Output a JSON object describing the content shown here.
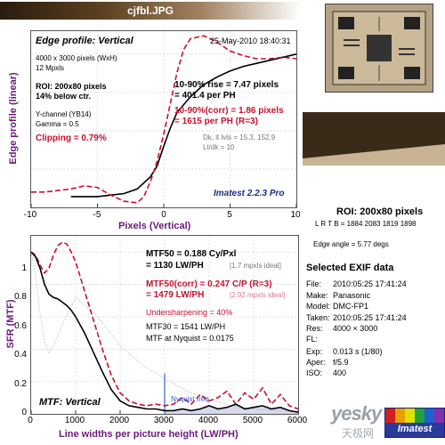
{
  "header": {
    "filename": "cjfbl.JPG",
    "gradient_colors": [
      "#2a1c0e",
      "#5a4020",
      "#a08060",
      "#ffffff"
    ]
  },
  "thumbnail": {
    "icon": "test-chart-thumbnail-icon"
  },
  "roi_crop": {
    "dark_color": "#3a2a18",
    "light_color": "#c8b494"
  },
  "edge_panel": {
    "title": "Edge profile: Vertical",
    "date": "25-May-2010 18:40:31",
    "info_lines": [
      "4000 x 3000 pixels (WxH)",
      "12 Mpxls"
    ],
    "roi_line1": "ROI: 200x80 pixels",
    "roi_line2": "14% below ctr.",
    "channel": "Y-channel (YB14)",
    "gamma": "Gamma = 0.5",
    "clipping": "Clipping = 0.79%",
    "rise_line1": "10-90% rise = 7.47 pixels",
    "rise_line2": "= 401.4 per PH",
    "corr_line1": "10-90%(corr) = 1.86 pixels",
    "corr_line2": "= 1615 per PH  (R=3)",
    "levels_line1": "Dk, lt lvls = 15.3, 152.9",
    "levels_line2": "Lt/dk = 10",
    "brand": "Imatest 2.2.3 Pro",
    "ylabel": "Edge profile (linear)",
    "xlabel": "Pixels (Vertical)",
    "xticks": [
      "-10",
      "-5",
      "0",
      "5",
      "10"
    ]
  },
  "mtf_panel": {
    "mtf50_line1": "MTF50 = 0.188 Cy/Pxl",
    "mtf50_line2": "= 1130 LW/PH",
    "mtf50_ideal": "[1.7 mpxls ideal]",
    "corr_line1": "MTF50(corr) = 0.247 C/P  (R=3)",
    "corr_line2": "= 1479 LW/PH",
    "corr_ideal": "[2.92 mpxls ideal]",
    "undersharpening": "Undersharpening = 40%",
    "mtf30": "MTF30 = 1541 LW/PH",
    "nyquist_mtf": "MTF at Nyquist = 0.0175",
    "nyquist_label": "Nyquist freq.",
    "title": "MTF: Vertical",
    "ylabel": "SFR (MTF)",
    "xlabel": "Line widths per picture height (LW/PH)",
    "xticks": [
      "0",
      "1000",
      "2000",
      "3000",
      "4000",
      "5000",
      "6000"
    ],
    "yticks": [
      "0",
      "0.2",
      "0.4",
      "0.6",
      "0.8",
      "1"
    ]
  },
  "roi_info": {
    "title": "ROI: 200x80 pixels",
    "lrtb": "L R T B = 1884 2083  1819 1898",
    "edge_angle": "Edge angle = 5.77 degs"
  },
  "exif": {
    "title": "Selected EXIF data",
    "rows": [
      {
        "key": "File:",
        "value": "2010:05:25 17:41:24"
      },
      {
        "key": "Make:",
        "value": "Panasonic"
      },
      {
        "key": "Model:",
        "value": "DMC-FP1"
      },
      {
        "key": "Taken:",
        "value": "2010:05:25 17:41:24"
      },
      {
        "key": "Res:",
        "value": "4000 × 3000"
      },
      {
        "key": "FL:",
        "value": ""
      },
      {
        "key": "Exp:",
        "value": "0.013 s  (1/80)"
      },
      {
        "key": "Aper:",
        "value": "f/5.9"
      },
      {
        "key": "ISO:",
        "value": "400"
      }
    ]
  },
  "watermarks": {
    "yesky": "yesky",
    "yesky_cn": "天极网",
    "imatest": "Imatest"
  },
  "chart_data": [
    {
      "type": "line",
      "title": "Edge profile: Vertical",
      "xlabel": "Pixels (Vertical)",
      "ylabel": "Edge profile (linear)",
      "xlim": [
        -10,
        10
      ],
      "ylim": [
        0,
        1.15
      ],
      "colors": {
        "raw": "#000000",
        "corrected": "#c8102e"
      },
      "series": [
        {
          "role": "raw",
          "x": [
            -7,
            -6,
            -5,
            -4,
            -3,
            -2,
            -1,
            -0.5,
            0,
            0.5,
            1,
            2,
            3,
            4,
            5,
            6,
            7,
            8,
            9,
            10
          ],
          "values": [
            0.07,
            0.07,
            0.07,
            0.08,
            0.09,
            0.12,
            0.2,
            0.27,
            0.4,
            0.52,
            0.62,
            0.72,
            0.8,
            0.85,
            0.89,
            0.92,
            0.94,
            0.96,
            0.98,
            1.0
          ]
        },
        {
          "role": "corrected",
          "x": [
            -10,
            -9,
            -8,
            -7,
            -6,
            -5,
            -4,
            -3,
            -2,
            -1.5,
            -1,
            -0.5,
            0,
            0.5,
            1,
            1.5,
            2,
            3,
            4,
            5,
            6,
            7,
            8,
            9,
            10
          ],
          "values": [
            0.1,
            0.1,
            0.11,
            0.12,
            0.14,
            0.13,
            0.08,
            0.04,
            0.03,
            0.07,
            0.17,
            0.3,
            0.48,
            0.68,
            0.88,
            1.03,
            1.1,
            1.12,
            1.08,
            1.02,
            0.99,
            0.97,
            0.97,
            0.98,
            0.97
          ]
        }
      ]
    },
    {
      "type": "line",
      "title": "MTF: Vertical",
      "xlabel": "Line widths per picture height (LW/PH)",
      "ylabel": "SFR (MTF)",
      "xlim": [
        0,
        6000
      ],
      "ylim": [
        0,
        1.1
      ],
      "nyquist": 3000,
      "colors": {
        "raw": "#000000",
        "corrected": "#c8102e",
        "ideal": "#999999",
        "nyquist": "#5577dd",
        "fill": "#d8d8ee"
      },
      "series": [
        {
          "role": "raw",
          "x": [
            0,
            100,
            200,
            300,
            400,
            500,
            600,
            700,
            800,
            900,
            1000,
            1200,
            1400,
            1600,
            1800,
            2000,
            2200,
            2400,
            2600,
            2800,
            3000,
            3200,
            3400,
            3600,
            3800,
            4000,
            4200,
            4400,
            4600,
            4800,
            5000,
            5200,
            5400,
            5600,
            5800,
            6000
          ],
          "values": [
            1.0,
            0.97,
            0.9,
            0.8,
            0.74,
            0.72,
            0.71,
            0.69,
            0.67,
            0.64,
            0.6,
            0.5,
            0.38,
            0.26,
            0.15,
            0.08,
            0.05,
            0.04,
            0.03,
            0.03,
            0.02,
            0.02,
            0.03,
            0.02,
            0.03,
            0.05,
            0.03,
            0.04,
            0.06,
            0.03,
            0.04,
            0.05,
            0.03,
            0.04,
            0.02,
            0.01
          ]
        },
        {
          "role": "corrected",
          "x": [
            0,
            100,
            200,
            300,
            400,
            500,
            600,
            700,
            800,
            900,
            1000,
            1200,
            1400,
            1600,
            1800,
            2000,
            2200,
            2400,
            2600,
            2800,
            3000,
            3200,
            3400,
            3600,
            3800,
            4000,
            4200,
            4400,
            4600,
            4800,
            5000,
            5200,
            5400,
            5600,
            5800,
            6000
          ],
          "values": [
            1.0,
            0.98,
            0.92,
            0.87,
            0.9,
            0.98,
            1.04,
            1.06,
            1.05,
            1.0,
            0.94,
            0.76,
            0.58,
            0.4,
            0.24,
            0.13,
            0.08,
            0.06,
            0.05,
            0.06,
            0.05,
            0.06,
            0.1,
            0.06,
            0.12,
            0.08,
            0.1,
            0.14,
            0.06,
            0.13,
            0.09,
            0.16,
            0.06,
            0.12,
            0.05,
            0.03
          ]
        },
        {
          "role": "ideal",
          "x": [
            0,
            100,
            200,
            300,
            400,
            500,
            700,
            1000,
            1500,
            2000,
            2500,
            3000,
            3500,
            4000,
            4500,
            5000,
            5500,
            6000
          ],
          "values": [
            1.0,
            0.85,
            0.62,
            0.45,
            0.38,
            0.42,
            0.55,
            0.72,
            0.6,
            0.42,
            0.3,
            0.22,
            0.14,
            0.09,
            0.05,
            0.03,
            0.02,
            0.01
          ]
        }
      ]
    }
  ]
}
